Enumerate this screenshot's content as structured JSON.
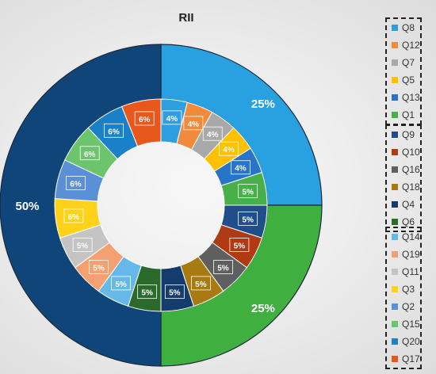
{
  "chart_data": {
    "type": "donut",
    "title": "RII",
    "outer_ring": {
      "values": [
        25,
        25,
        50
      ],
      "labels": [
        "25%",
        "25%",
        "50%"
      ],
      "colors": [
        "#29a0e0",
        "#3fb03f",
        "#10457a"
      ]
    },
    "inner_ring": {
      "series": [
        {
          "name": "Q8",
          "value": 4,
          "label": "4%",
          "color": "#2e9ee0"
        },
        {
          "name": "Q12",
          "value": 4,
          "label": "4%",
          "color": "#f08a3c"
        },
        {
          "name": "Q7",
          "value": 4,
          "label": "4%",
          "color": "#a9a9a9"
        },
        {
          "name": "Q5",
          "value": 4,
          "label": "4%",
          "color": "#ffc000"
        },
        {
          "name": "Q13",
          "value": 4,
          "label": "4%",
          "color": "#2a74c8"
        },
        {
          "name": "Q1",
          "value": 5,
          "label": "5%",
          "color": "#48b048"
        },
        {
          "name": "Q9",
          "value": 5,
          "label": "5%",
          "color": "#1f4e8a"
        },
        {
          "name": "Q10",
          "value": 5,
          "label": "5%",
          "color": "#b03a12"
        },
        {
          "name": "Q16",
          "value": 5,
          "label": "5%",
          "color": "#5f5f5f"
        },
        {
          "name": "Q18",
          "value": 5,
          "label": "5%",
          "color": "#a87a12"
        },
        {
          "name": "Q4",
          "value": 5,
          "label": "5%",
          "color": "#143d6e"
        },
        {
          "name": "Q6",
          "value": 5,
          "label": "5%",
          "color": "#2a6a2a"
        },
        {
          "name": "Q14",
          "value": 5,
          "label": "5%",
          "color": "#66b8e8"
        },
        {
          "name": "Q19",
          "value": 5,
          "label": "5%",
          "color": "#f5a070"
        },
        {
          "name": "Q11",
          "value": 5,
          "label": "5%",
          "color": "#c4c4c4"
        },
        {
          "name": "Q3",
          "value": 6,
          "label": "6%",
          "color": "#ffd21a"
        },
        {
          "name": "Q2",
          "value": 6,
          "label": "6%",
          "color": "#5b8fd6"
        },
        {
          "name": "Q15",
          "value": 6,
          "label": "6%",
          "color": "#6cc46c"
        },
        {
          "name": "Q20",
          "value": 6,
          "label": "6%",
          "color": "#1a80c8"
        },
        {
          "name": "Q17",
          "value": 6,
          "label": "6%",
          "color": "#e8581c"
        }
      ]
    },
    "legend_groups": [
      [
        "Q8",
        "Q12",
        "Q7",
        "Q5",
        "Q13",
        "Q1"
      ],
      [
        "Q9",
        "Q10",
        "Q16",
        "Q18",
        "Q4",
        "Q6"
      ],
      [
        "Q14",
        "Q19",
        "Q11",
        "Q3",
        "Q2",
        "Q15",
        "Q20",
        "Q17"
      ]
    ],
    "legend_placement": "right"
  }
}
